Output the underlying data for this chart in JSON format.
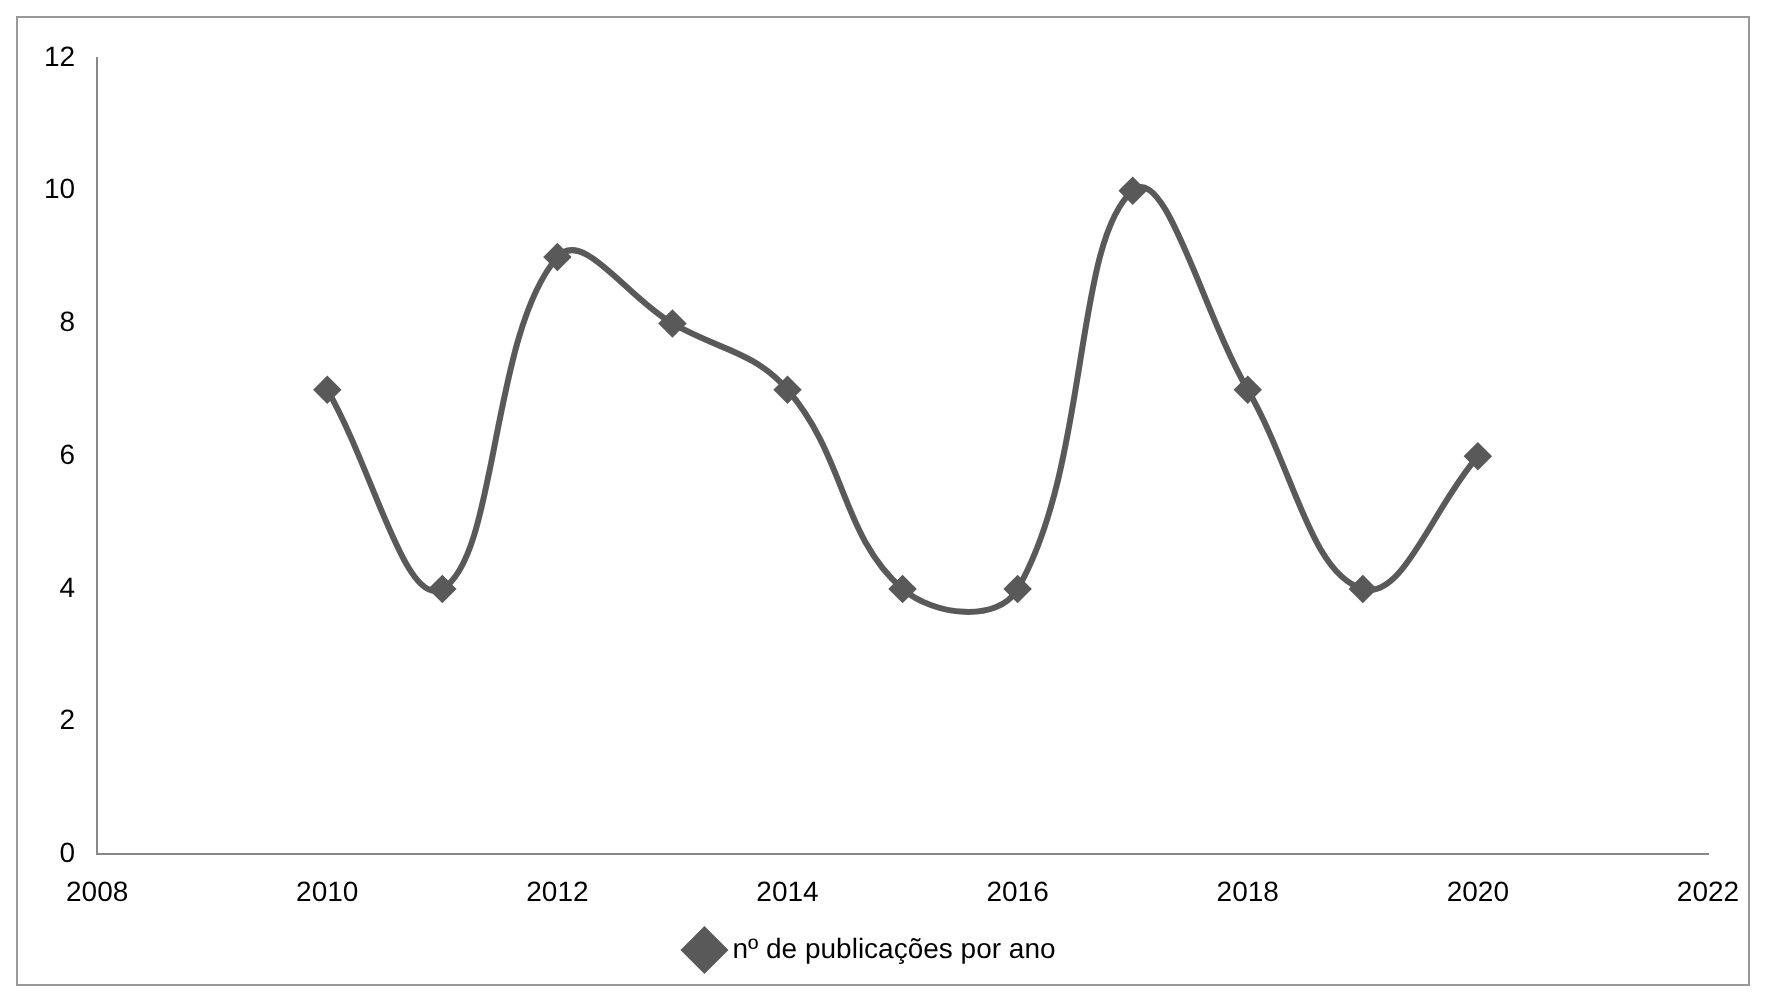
{
  "chart_data": {
    "type": "line",
    "x": [
      2010,
      2011,
      2012,
      2013,
      2014,
      2015,
      2016,
      2017,
      2018,
      2019,
      2020
    ],
    "series": [
      {
        "name": "nº de publicações por ano",
        "color": "#595959",
        "values": [
          7,
          4,
          9,
          8,
          7,
          4,
          4,
          10,
          7,
          4,
          6
        ]
      }
    ],
    "xlim": [
      2008,
      2022
    ],
    "xticks": [
      2008,
      2010,
      2012,
      2014,
      2016,
      2018,
      2020,
      2022
    ],
    "ylim": [
      0,
      12
    ],
    "yticks": [
      0,
      2,
      4,
      6,
      8,
      10,
      12
    ],
    "grid": false,
    "legend": "bottom",
    "marker": "diamond",
    "line_style": "solid"
  }
}
